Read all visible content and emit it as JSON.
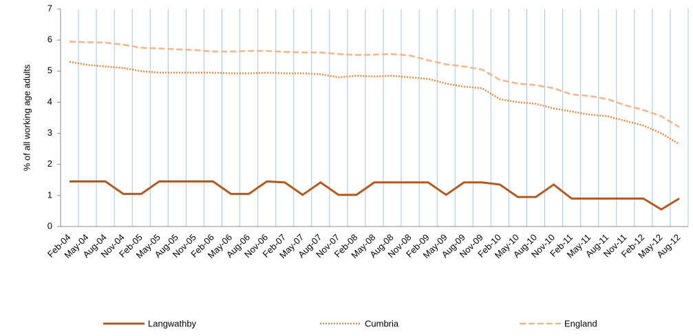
{
  "chart_data": {
    "type": "line",
    "y_label": "% of all working age adults",
    "categories": [
      "Feb-04",
      "May-04",
      "Aug-04",
      "Nov-04",
      "Feb-05",
      "May-05",
      "Aug-05",
      "Nov-05",
      "Feb-06",
      "May-06",
      "Aug-06",
      "Nov-06",
      "Feb-07",
      "May-07",
      "Aug-07",
      "Nov-07",
      "Feb-08",
      "May-08",
      "Aug-08",
      "Nov-08",
      "Feb-09",
      "May-09",
      "Aug-09",
      "Nov-09",
      "Feb-10",
      "May-10",
      "Aug-10",
      "Nov-10",
      "Feb-11",
      "May-11",
      "Aug-11",
      "Nov-11",
      "Feb-12",
      "May-12",
      "Aug-12"
    ],
    "series": [
      {
        "name": "Langwathby",
        "color": "#b5581f",
        "dash": "solid",
        "values": [
          1.45,
          1.45,
          1.45,
          1.05,
          1.05,
          1.45,
          1.45,
          1.45,
          1.45,
          1.05,
          1.05,
          1.45,
          1.42,
          1.02,
          1.42,
          1.02,
          1.02,
          1.42,
          1.42,
          1.42,
          1.42,
          1.02,
          1.42,
          1.42,
          1.35,
          0.95,
          0.95,
          1.35,
          0.9,
          0.9,
          0.9,
          0.9,
          0.9,
          0.55,
          0.9
        ]
      },
      {
        "name": "Cumbria",
        "color": "#e5873e",
        "dash": "dotted",
        "values": [
          5.3,
          5.2,
          5.15,
          5.1,
          5.0,
          4.95,
          4.95,
          4.95,
          4.95,
          4.93,
          4.93,
          4.95,
          4.93,
          4.93,
          4.9,
          4.8,
          4.85,
          4.83,
          4.85,
          4.8,
          4.75,
          4.6,
          4.5,
          4.45,
          4.1,
          4.0,
          3.95,
          3.8,
          3.7,
          3.6,
          3.55,
          3.4,
          3.25,
          3.0,
          2.65
        ]
      },
      {
        "name": "England",
        "color": "#f5b48a",
        "dash": "dashed",
        "values": [
          5.95,
          5.93,
          5.92,
          5.85,
          5.75,
          5.73,
          5.7,
          5.68,
          5.63,
          5.63,
          5.65,
          5.65,
          5.62,
          5.6,
          5.6,
          5.55,
          5.52,
          5.53,
          5.55,
          5.5,
          5.35,
          5.22,
          5.15,
          5.05,
          4.72,
          4.6,
          4.55,
          4.45,
          4.25,
          4.2,
          4.1,
          3.9,
          3.75,
          3.55,
          3.2
        ]
      }
    ],
    "ylim": [
      0,
      7
    ],
    "yticks": [
      0,
      1,
      2,
      3,
      4,
      5,
      6,
      7
    ],
    "grid": true,
    "legend": "bottom"
  }
}
